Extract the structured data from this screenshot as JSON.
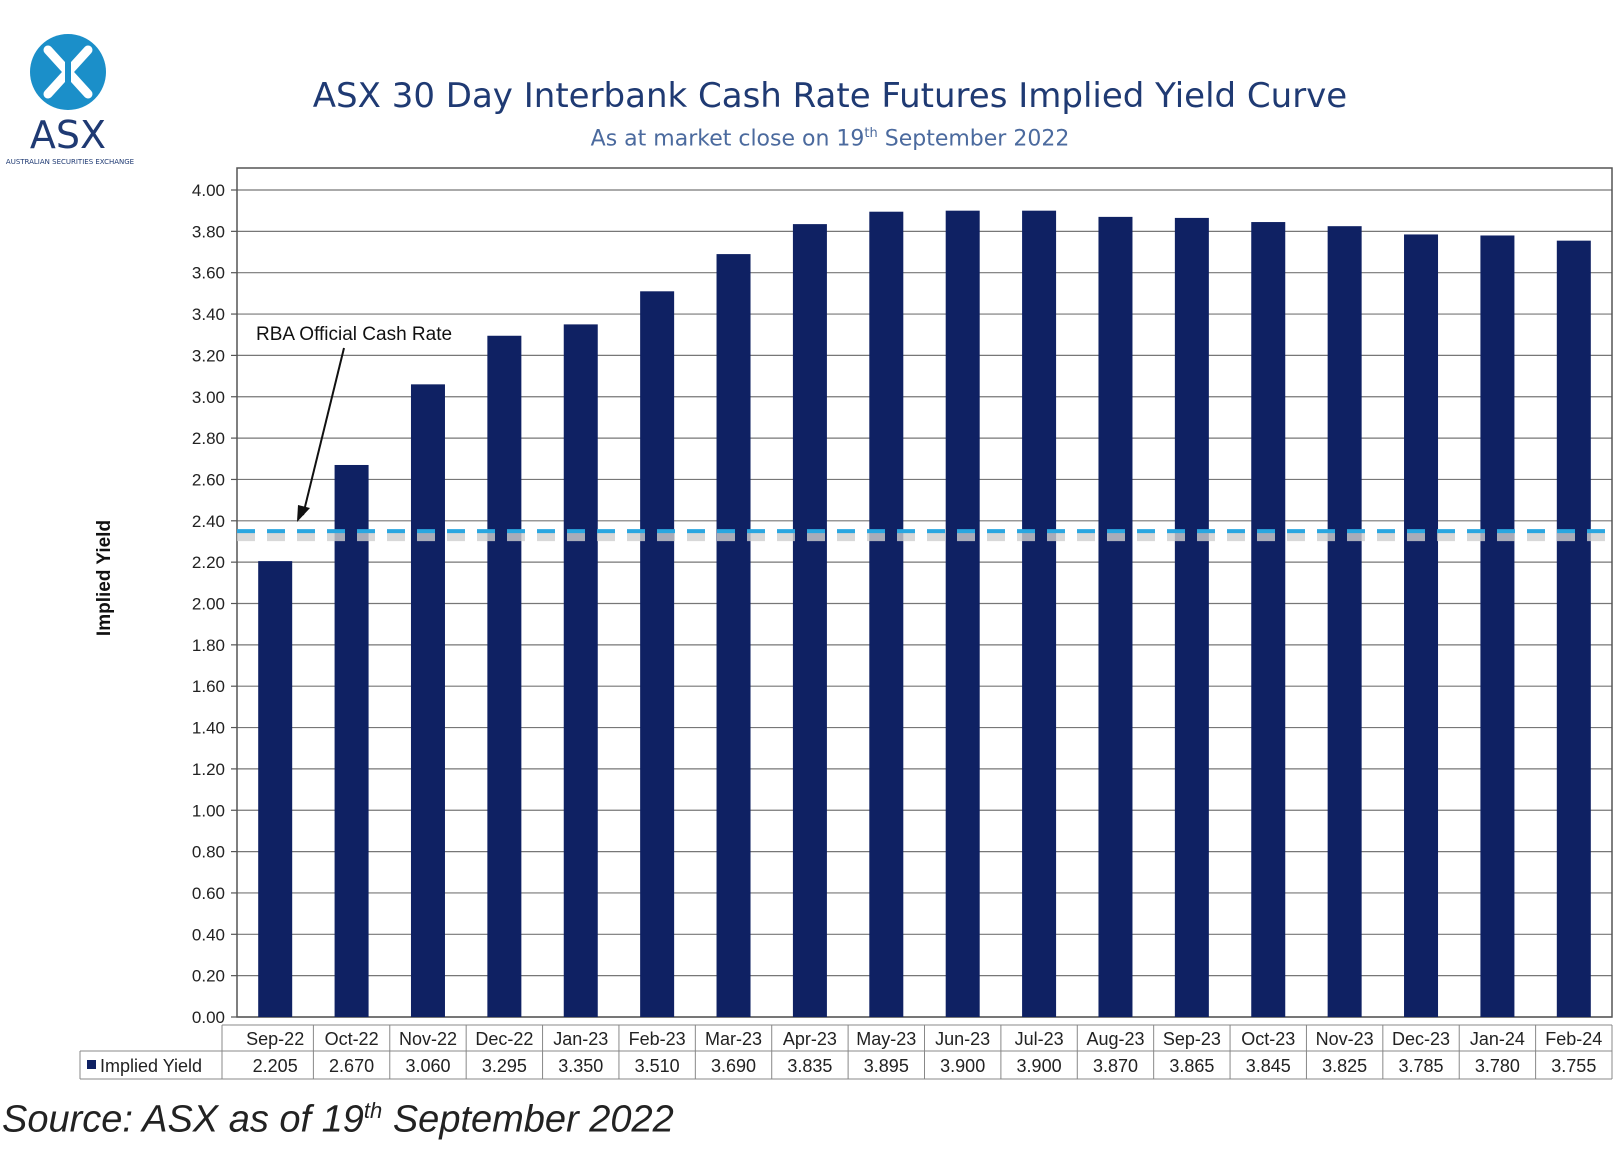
{
  "logo": {
    "text": "ASX",
    "tagline": "AUSTRALIAN SECURITIES EXCHANGE"
  },
  "header": {
    "title": "ASX 30 Day Interbank Cash Rate Futures Implied Yield Curve",
    "subtitle_pre": "As at market close on 19",
    "subtitle_sup": "th",
    "subtitle_post": " September 2022"
  },
  "source": {
    "pre": "Source: ASX as of 19",
    "sup": "th",
    "post": " September 2022"
  },
  "chart_data": {
    "type": "bar",
    "categories": [
      "Sep-22",
      "Oct-22",
      "Nov-22",
      "Dec-22",
      "Jan-23",
      "Feb-23",
      "Mar-23",
      "Apr-23",
      "May-23",
      "Jun-23",
      "Jul-23",
      "Aug-23",
      "Sep-23",
      "Oct-23",
      "Nov-23",
      "Dec-23",
      "Jan-24",
      "Feb-24"
    ],
    "series": [
      {
        "name": "Implied Yield",
        "values": [
          2.205,
          2.67,
          3.06,
          3.295,
          3.35,
          3.51,
          3.69,
          3.835,
          3.895,
          3.9,
          3.9,
          3.87,
          3.865,
          3.845,
          3.825,
          3.785,
          3.78,
          3.755
        ],
        "labels": [
          "2.205",
          "2.670",
          "3.060",
          "3.295",
          "3.350",
          "3.510",
          "3.690",
          "3.835",
          "3.895",
          "3.900",
          "3.900",
          "3.870",
          "3.865",
          "3.845",
          "3.825",
          "3.785",
          "3.780",
          "3.755"
        ]
      }
    ],
    "ylabel": "Implied Yield",
    "ylim": [
      0,
      4
    ],
    "yticks": [
      "0.00",
      "0.20",
      "0.40",
      "0.60",
      "0.80",
      "1.00",
      "1.20",
      "1.40",
      "1.60",
      "1.80",
      "2.00",
      "2.20",
      "2.40",
      "2.60",
      "2.80",
      "3.00",
      "3.20",
      "3.40",
      "3.60",
      "3.80",
      "4.00"
    ],
    "reference_line": {
      "label": "RBA Official Cash Rate",
      "value": 2.35
    },
    "grid": true,
    "legend": "data-table-left",
    "colors": {
      "bar": "#0f2163",
      "reference": "#2aa6e0",
      "grid": "#444444",
      "title": "#1f3a73"
    }
  }
}
